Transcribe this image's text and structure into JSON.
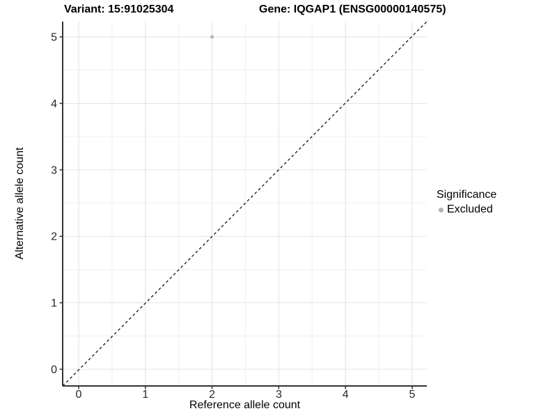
{
  "chart_data": {
    "type": "scatter",
    "title_left": "Variant: 15:91025304",
    "title_right": "Gene: IQGAP1 (ENSG00000140575)",
    "xlabel": "Reference allele count",
    "ylabel": "Alternative allele count",
    "xlim": [
      -0.25,
      5.25
    ],
    "ylim": [
      -0.25,
      5.25
    ],
    "x_ticks": [
      0,
      1,
      2,
      3,
      4,
      5
    ],
    "y_ticks": [
      0,
      1,
      2,
      3,
      4,
      5
    ],
    "x_minor_ticks": [
      0.5,
      1.5,
      2.5,
      3.5,
      4.5
    ],
    "y_minor_ticks": [
      0.5,
      1.5,
      2.5,
      3.5,
      4.5
    ],
    "grid": "major-and-minor",
    "reference_line": {
      "slope": 1,
      "intercept": 0,
      "style": "dashed",
      "color": "#000000"
    },
    "series": [
      {
        "name": "Excluded",
        "color": "#b3b3b3",
        "point_radius": 2.5,
        "points": [
          {
            "x": 2,
            "y": 5
          }
        ]
      }
    ],
    "legend": {
      "title": "Significance",
      "position": "right",
      "entries": [
        {
          "label": "Excluded",
          "color": "#b3b3b3"
        }
      ]
    },
    "colors": {
      "background": "#ffffff",
      "grid_major": "#e2e2e2",
      "grid_minor": "#efefef",
      "axis_line": "#333333",
      "tick_mark": "#333333",
      "tick_label": "#262626"
    }
  }
}
